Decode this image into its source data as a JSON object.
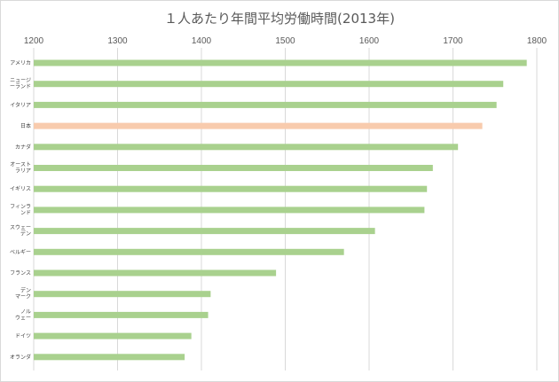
{
  "chart_data": {
    "type": "bar",
    "orientation": "horizontal",
    "title": "１人あたり年間平均労働時間(2013年)",
    "xlabel": "",
    "ylabel": "",
    "xlim": [
      1200,
      1800
    ],
    "xticks": [
      "1200",
      "1300",
      "1400",
      "1500",
      "1600",
      "1700",
      "1800"
    ],
    "axis_position": "top",
    "grid": true,
    "categories": [
      [
        "アメリカ"
      ],
      [
        "ニュージ",
        "ーランド"
      ],
      [
        "イタリア"
      ],
      [
        "日本"
      ],
      [
        "カナダ"
      ],
      [
        "オースト",
        "ラリア"
      ],
      [
        "イギリス"
      ],
      [
        "フィンラ",
        "ンド"
      ],
      [
        "スウェー",
        "デン"
      ],
      [
        "ベルギー"
      ],
      [
        "フランス"
      ],
      [
        "デン",
        "マーク"
      ],
      [
        "ノル",
        "ウェー"
      ],
      [
        "ドイツ"
      ],
      [
        "オランダ"
      ]
    ],
    "values": [
      1788,
      1760,
      1752,
      1735,
      1706,
      1676,
      1669,
      1666,
      1607,
      1570,
      1489,
      1411,
      1408,
      1388,
      1380
    ],
    "bar_color": "#a9d18e",
    "highlight_color": "#f8cbad",
    "highlight_index": 3,
    "grid_color": "#d9d9d9",
    "text_color": "#595959"
  }
}
